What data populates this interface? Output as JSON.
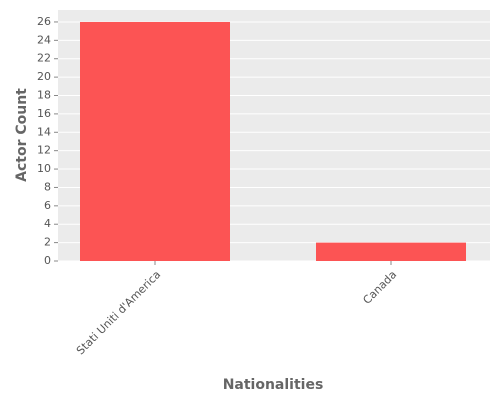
{
  "chart_data": {
    "type": "bar",
    "x_label": "Nationalities",
    "y_label": "Actor Count",
    "categories": [
      "Stati Uniti d'America",
      "Canada"
    ],
    "values": [
      26,
      2
    ],
    "color": "#fc5454",
    "ylim": [
      0,
      27.3
    ],
    "yticks": [
      0,
      2,
      4,
      6,
      8,
      10,
      12,
      14,
      16,
      18,
      20,
      22,
      24,
      26
    ],
    "grid": true
  }
}
